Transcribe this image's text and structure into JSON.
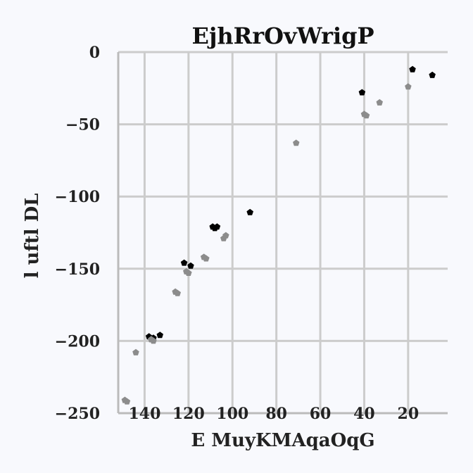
{
  "chart_data": {
    "type": "scatter",
    "title": "EjhRrOvWrigP",
    "xlabel": "E MuyKMAqaOqG",
    "ylabel": "l uftl DL",
    "x_reversed": true,
    "xlim": [
      152,
      2
    ],
    "ylim": [
      -250,
      0
    ],
    "xticks": [
      140,
      120,
      100,
      80,
      60,
      40,
      20
    ],
    "xtick_labels": [
      "140",
      "120",
      "100",
      "80",
      "60",
      "40",
      "20"
    ],
    "yticks": [
      0,
      -50,
      -100,
      -150,
      -200,
      -250
    ],
    "ytick_labels": [
      "0",
      "−50",
      "−100",
      "−150",
      "−200",
      "−250"
    ],
    "grid": true,
    "series": [
      {
        "color": "#000000",
        "points": [
          {
            "x": 138,
            "y": -197
          },
          {
            "x": 136,
            "y": -198
          },
          {
            "x": 133,
            "y": -196
          },
          {
            "x": 122,
            "y": -146
          },
          {
            "x": 119,
            "y": -148
          },
          {
            "x": 109,
            "y": -121
          },
          {
            "x": 108,
            "y": -122
          },
          {
            "x": 107,
            "y": -121
          },
          {
            "x": 92,
            "y": -111
          },
          {
            "x": 41,
            "y": -28
          },
          {
            "x": 18,
            "y": -12
          },
          {
            "x": 9,
            "y": -16
          }
        ]
      },
      {
        "color": "#8c8c8c",
        "points": [
          {
            "x": 149,
            "y": -241
          },
          {
            "x": 148,
            "y": -242
          },
          {
            "x": 144,
            "y": -208
          },
          {
            "x": 137,
            "y": -199
          },
          {
            "x": 136,
            "y": -200
          },
          {
            "x": 126,
            "y": -166
          },
          {
            "x": 125,
            "y": -167
          },
          {
            "x": 121,
            "y": -152
          },
          {
            "x": 120,
            "y": -153
          },
          {
            "x": 113,
            "y": -142
          },
          {
            "x": 112,
            "y": -143
          },
          {
            "x": 104,
            "y": -129
          },
          {
            "x": 103,
            "y": -127
          },
          {
            "x": 71,
            "y": -63
          },
          {
            "x": 40,
            "y": -43
          },
          {
            "x": 39,
            "y": -44
          },
          {
            "x": 33,
            "y": -35
          },
          {
            "x": 20,
            "y": -24
          }
        ]
      }
    ]
  }
}
